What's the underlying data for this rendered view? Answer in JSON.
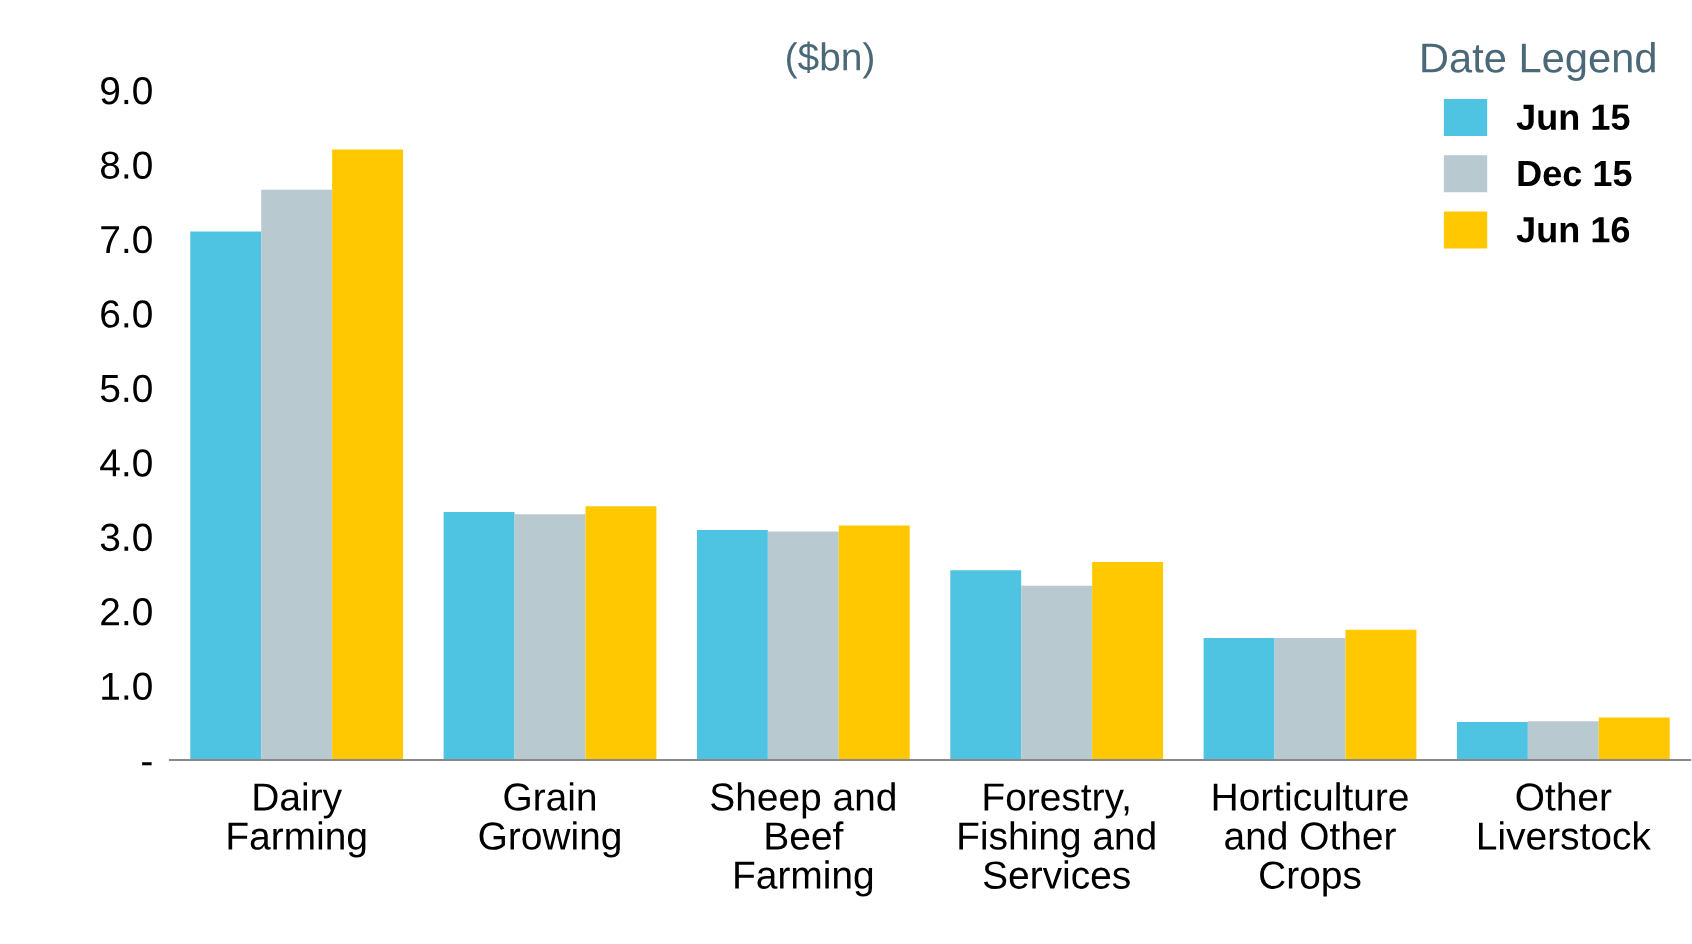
{
  "chart_data": {
    "type": "bar",
    "ylabel": "($bn)",
    "legend_title": "Date Legend",
    "legend": "top right",
    "grid": false,
    "categories": [
      "Dairy\nFarming",
      "Grain\nGrowing",
      "Sheep and\nBeef\nFarming",
      "Forestry,\nFishing and\nServices",
      "Horticulture\nand Other\nCrops",
      "Other\nLiverstock"
    ],
    "ylim": [
      0,
      9
    ],
    "yticks": [
      {
        "value": 0,
        "label": "-"
      },
      {
        "value": 1,
        "label": "1.0"
      },
      {
        "value": 2,
        "label": "2.0"
      },
      {
        "value": 3,
        "label": "3.0"
      },
      {
        "value": 4,
        "label": "4.0"
      },
      {
        "value": 5,
        "label": "5.0"
      },
      {
        "value": 6,
        "label": "6.0"
      },
      {
        "value": 7,
        "label": "7.0"
      },
      {
        "value": 8,
        "label": "8.0"
      },
      {
        "value": 9,
        "label": "9.0"
      }
    ],
    "series": [
      {
        "name": "Jun 15",
        "color": "#4fc4e2",
        "values": [
          7.1,
          3.33,
          3.09,
          2.55,
          1.64,
          0.51
        ]
      },
      {
        "name": "Dec 15",
        "color": "#b9c9d0",
        "values": [
          7.66,
          3.3,
          3.07,
          2.34,
          1.64,
          0.52
        ]
      },
      {
        "name": "Jun 16",
        "color": "#ffc800",
        "values": [
          8.2,
          3.41,
          3.15,
          2.66,
          1.75,
          0.57
        ]
      }
    ]
  }
}
